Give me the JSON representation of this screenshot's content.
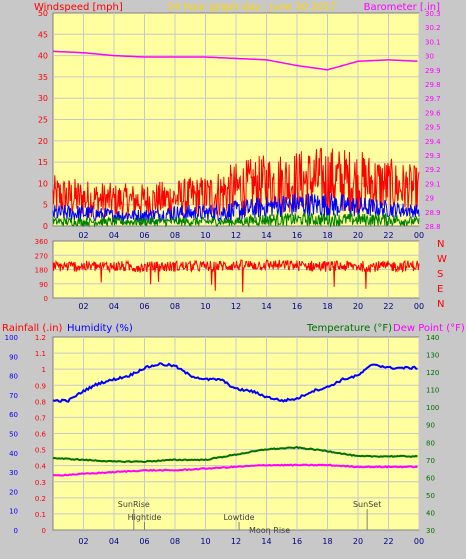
{
  "header": {
    "left": "Windspeed [mph]",
    "center": "24 hour graph day : June 30 2017",
    "right": "Barometer [.in]"
  },
  "panel_labels": {
    "rainfall": "Rainfall (.in)",
    "humidity": "Humidity (%)",
    "temperature": "Temperature (°F)",
    "dewpoint": "Dew Point (°F)"
  },
  "compass": [
    "N",
    "W",
    "S",
    "E",
    "N"
  ],
  "events": {
    "sunrise": "SunRise",
    "hightide": "Hightide",
    "lowtide": "Lowtide",
    "moonrise": "Moon Rise",
    "sunset": "SunSet"
  },
  "colors": {
    "background": "#C8C8C8",
    "plot": "#FFFFA0",
    "grid": "#C8C8C8",
    "wind": "#FF0000",
    "gust": "#0000FF",
    "avgwind": "#008000",
    "barometer": "#FF00FF",
    "humidity": "#0000FF",
    "temperature": "#007000",
    "dewpoint": "#FF00FF",
    "header_left": "#FF0000",
    "header_center": "#FFD700",
    "header_right": "#FF00FF"
  },
  "chart_data": [
    {
      "type": "line",
      "name": "wind-barometer",
      "x_ticks": [
        "02",
        "04",
        "06",
        "08",
        "10",
        "12",
        "14",
        "16",
        "18",
        "20",
        "22",
        "00"
      ],
      "y_left_ticks": [
        "0",
        "5",
        "10",
        "15",
        "20",
        "25",
        "30",
        "35",
        "40",
        "45",
        "50"
      ],
      "y_left_range": [
        0,
        50
      ],
      "y_right_ticks": [
        "28.8",
        "28.9",
        "29",
        "29.1",
        "29.2",
        "29.3",
        "29.4",
        "29.5",
        "29.6",
        "29.7",
        "29.8",
        "29.9",
        "30",
        "30.1",
        "30.2",
        "30.3"
      ],
      "y_right_range": [
        28.8,
        30.3
      ],
      "wind_band": {
        "hours": [
          0,
          2,
          4,
          6,
          8,
          10,
          12,
          14,
          16,
          18,
          20,
          22,
          24
        ],
        "low": [
          2,
          2,
          2,
          2,
          2,
          2,
          2,
          3,
          3,
          3,
          3,
          3,
          3
        ],
        "high": [
          12,
          11,
          10,
          10,
          11,
          12,
          15,
          17,
          18,
          19,
          18,
          16,
          14
        ]
      },
      "gust_band": {
        "hours": [
          0,
          2,
          4,
          6,
          8,
          10,
          12,
          14,
          16,
          18,
          20,
          22,
          24
        ],
        "low": [
          1,
          1,
          1,
          1,
          1,
          1,
          1,
          2,
          2,
          2,
          2,
          2,
          2
        ],
        "high": [
          5,
          5,
          4,
          4,
          5,
          5,
          6,
          7,
          8,
          8,
          7,
          6,
          5
        ]
      },
      "avg_band": {
        "hours": [
          0,
          2,
          4,
          6,
          8,
          10,
          12,
          14,
          16,
          18,
          20,
          22,
          24
        ],
        "low": [
          0,
          0,
          0,
          0,
          0,
          0,
          0,
          0,
          0,
          0,
          0,
          0,
          0
        ],
        "high": [
          2,
          2,
          2,
          2,
          2,
          2,
          2,
          3,
          3,
          3,
          3,
          3,
          2
        ]
      },
      "barometer": {
        "hours": [
          0,
          2,
          4,
          6,
          8,
          10,
          12,
          14,
          16,
          18,
          20,
          22,
          24
        ],
        "values": [
          30.03,
          30.02,
          30.0,
          29.99,
          29.99,
          29.99,
          29.98,
          29.97,
          29.93,
          29.9,
          29.96,
          29.97,
          29.96
        ]
      },
      "grid": true
    },
    {
      "type": "line",
      "name": "wind-direction",
      "x_ticks": [
        "02",
        "04",
        "06",
        "08",
        "10",
        "12",
        "14",
        "16",
        "18",
        "20",
        "22",
        "00"
      ],
      "y_ticks": [
        "0",
        "90",
        "180",
        "270",
        "360"
      ],
      "y_range": [
        0,
        360
      ],
      "direction": {
        "hours": [
          0,
          2,
          4,
          6,
          8,
          10,
          12,
          14,
          16,
          18,
          20,
          22,
          24
        ],
        "center": [
          200,
          200,
          200,
          195,
          200,
          200,
          205,
          210,
          205,
          200,
          200,
          200,
          205
        ],
        "spread": 70
      },
      "grid": true
    },
    {
      "type": "line",
      "name": "humidity-temperature",
      "x_ticks": [
        "02",
        "04",
        "06",
        "08",
        "10",
        "12",
        "14",
        "16",
        "18",
        "20",
        "22",
        "00"
      ],
      "y_left_ticks": [
        "0",
        "0.1",
        "0.2",
        "0.3",
        "0.4",
        "0.5",
        "0.6",
        "0.7",
        "0.8",
        "0.9",
        "1",
        "1.1",
        "1.2"
      ],
      "y_left_range": [
        0,
        1.2
      ],
      "y_far_left_ticks": [
        "0",
        "10",
        "20",
        "30",
        "40",
        "50",
        "60",
        "70",
        "80",
        "90",
        "100"
      ],
      "y_far_left_range": [
        0,
        100
      ],
      "y_right_ticks": [
        "30",
        "40",
        "50",
        "60",
        "70",
        "80",
        "90",
        "100",
        "110",
        "120",
        "130",
        "140"
      ],
      "y_right_range": [
        30,
        140
      ],
      "humidity": {
        "hours": [
          0,
          1,
          2,
          3,
          4,
          5,
          6,
          7,
          8,
          9,
          10,
          11,
          12,
          13,
          14,
          15,
          16,
          17,
          18,
          19,
          20,
          21,
          22,
          23,
          24
        ],
        "values": [
          67,
          67,
          72,
          76,
          78,
          80,
          84,
          86,
          85,
          80,
          78,
          78,
          73,
          72,
          69,
          67,
          68,
          72,
          74,
          78,
          80,
          86,
          84,
          84,
          84
        ]
      },
      "temperature": {
        "hours": [
          0,
          2,
          4,
          6,
          8,
          10,
          12,
          14,
          16,
          18,
          20,
          22,
          24
        ],
        "values": [
          71,
          70,
          69,
          69,
          70,
          70,
          73,
          76,
          77,
          75,
          72,
          72,
          72
        ]
      },
      "dewpoint": {
        "hours": [
          0,
          2,
          4,
          6,
          8,
          10,
          12,
          14,
          16,
          18,
          20,
          22,
          24
        ],
        "values": [
          61,
          62,
          63,
          64,
          64,
          65,
          66,
          67,
          67,
          67,
          66,
          66,
          66
        ]
      },
      "events": [
        {
          "label": "SunRise",
          "hour": 5.3
        },
        {
          "label": "Hightide",
          "hour": 6.0
        },
        {
          "label": "Lowtide",
          "hour": 12.2
        },
        {
          "label": "Moon Rise",
          "hour": 14.2
        },
        {
          "label": "SunSet",
          "hour": 20.6
        }
      ],
      "grid": true
    }
  ]
}
